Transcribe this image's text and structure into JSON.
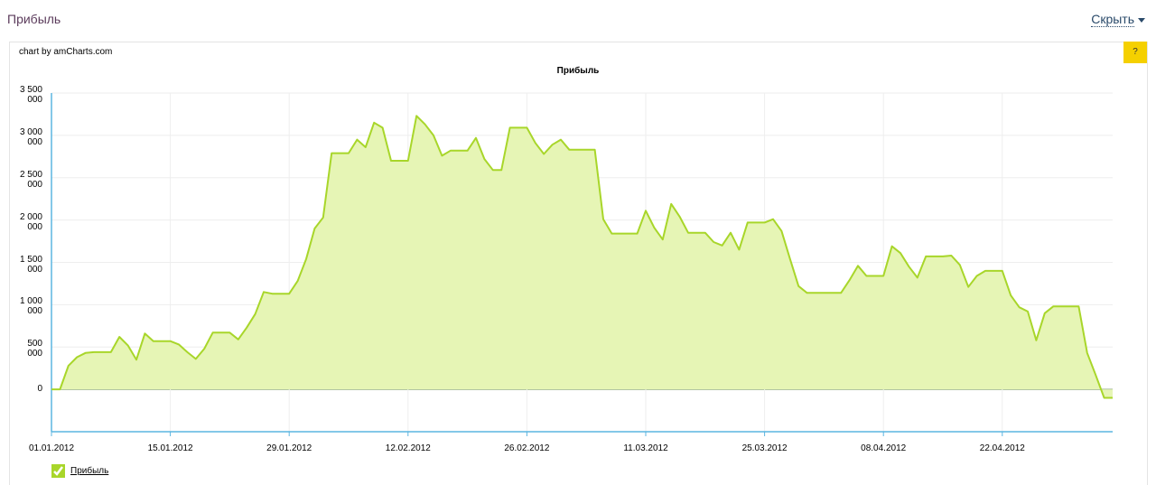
{
  "panel": {
    "title": "Прибыль",
    "toggle": "Скрыть",
    "credit": "chart by amCharts.com",
    "help": "?"
  },
  "chart_data": {
    "type": "area",
    "title": "Прибыль",
    "x": [
      "2012-01-01",
      "2012-01-02",
      "2012-01-03",
      "2012-01-04",
      "2012-01-05",
      "2012-01-06",
      "2012-01-08",
      "2012-01-09",
      "2012-01-10",
      "2012-01-11",
      "2012-01-12",
      "2012-01-13",
      "2012-01-15",
      "2012-01-16",
      "2012-01-17",
      "2012-01-18",
      "2012-01-19",
      "2012-01-20",
      "2012-01-22",
      "2012-01-23",
      "2012-01-24",
      "2012-01-25",
      "2012-01-26",
      "2012-01-27",
      "2012-01-29",
      "2012-01-30",
      "2012-01-31",
      "2012-02-01",
      "2012-02-02",
      "2012-02-03",
      "2012-02-05",
      "2012-02-06",
      "2012-02-07",
      "2012-02-08",
      "2012-02-09",
      "2012-02-10",
      "2012-02-12",
      "2012-02-13",
      "2012-02-14",
      "2012-02-15",
      "2012-02-16",
      "2012-02-17",
      "2012-02-19",
      "2012-02-20",
      "2012-02-21",
      "2012-02-22",
      "2012-02-23",
      "2012-02-24",
      "2012-02-26",
      "2012-02-27",
      "2012-02-28",
      "2012-02-29",
      "2012-03-01",
      "2012-03-02",
      "2012-03-05",
      "2012-03-06",
      "2012-03-07",
      "2012-03-10",
      "2012-03-11",
      "2012-03-12",
      "2012-03-13",
      "2012-03-14",
      "2012-03-15",
      "2012-03-16",
      "2012-03-18",
      "2012-03-19",
      "2012-03-20",
      "2012-03-21",
      "2012-03-22",
      "2012-03-23",
      "2012-03-25",
      "2012-03-26",
      "2012-03-27",
      "2012-03-28",
      "2012-03-29",
      "2012-03-30",
      "2012-04-03",
      "2012-04-04",
      "2012-04-05",
      "2012-04-06",
      "2012-04-08",
      "2012-04-09",
      "2012-04-10",
      "2012-04-11",
      "2012-04-12",
      "2012-04-13",
      "2012-04-15",
      "2012-04-16",
      "2012-04-17",
      "2012-04-18",
      "2012-04-19",
      "2012-04-20",
      "2012-04-22",
      "2012-04-23",
      "2012-04-24",
      "2012-04-25",
      "2012-04-26",
      "2012-04-27",
      "2012-04-28",
      "2012-05-01",
      "2012-05-02",
      "2012-05-03",
      "2012-05-04",
      "2012-05-05"
    ],
    "series": [
      {
        "name": "Прибыль",
        "color": "#a8d62a",
        "fill": "#e6f5b5",
        "values": [
          0,
          0,
          280000,
          380000,
          430000,
          440000,
          440000,
          620000,
          520000,
          350000,
          660000,
          570000,
          570000,
          530000,
          440000,
          360000,
          480000,
          670000,
          670000,
          590000,
          730000,
          890000,
          1150000,
          1130000,
          1130000,
          1280000,
          1540000,
          1900000,
          2030000,
          2790000,
          2790000,
          2950000,
          2860000,
          3150000,
          3090000,
          2700000,
          2700000,
          3230000,
          3130000,
          3000000,
          2760000,
          2820000,
          2820000,
          2970000,
          2720000,
          2590000,
          2590000,
          3090000,
          3090000,
          2910000,
          2780000,
          2890000,
          2950000,
          2830000,
          2830000,
          2010000,
          1840000,
          1840000,
          2110000,
          1910000,
          1770000,
          2190000,
          2040000,
          1850000,
          1850000,
          1740000,
          1700000,
          1850000,
          1650000,
          1970000,
          1970000,
          2010000,
          1870000,
          1540000,
          1220000,
          1140000,
          1140000,
          1290000,
          1460000,
          1340000,
          1340000,
          1690000,
          1610000,
          1450000,
          1320000,
          1570000,
          1570000,
          1580000,
          1470000,
          1210000,
          1340000,
          1400000,
          1400000,
          1110000,
          970000,
          920000,
          580000,
          900000,
          980000,
          980000,
          430000,
          170000,
          -100000,
          -100000
        ]
      }
    ],
    "xlim": [
      "2012-01-01",
      "2012-05-05"
    ],
    "xticks": [
      {
        "value": "2012-01-01",
        "label": "01.01.2012"
      },
      {
        "value": "2012-01-15",
        "label": "15.01.2012"
      },
      {
        "value": "2012-01-29",
        "label": "29.01.2012"
      },
      {
        "value": "2012-02-12",
        "label": "12.02.2012"
      },
      {
        "value": "2012-02-26",
        "label": "26.02.2012"
      },
      {
        "value": "2012-03-11",
        "label": "11.03.2012"
      },
      {
        "value": "2012-03-25",
        "label": "25.03.2012"
      },
      {
        "value": "2012-04-08",
        "label": "08.04.2012"
      },
      {
        "value": "2012-04-22",
        "label": "22.04.2012"
      }
    ],
    "ylim": [
      -500000,
      3500000
    ],
    "yticks": [
      0,
      {
        "value": 500000,
        "label": "500 000"
      },
      {
        "value": 1000000,
        "label": "1 000 000"
      },
      {
        "value": 1500000,
        "label": "1 500 000"
      },
      {
        "value": 2000000,
        "label": "2 000 000"
      },
      {
        "value": 2500000,
        "label": "2 500 000"
      },
      {
        "value": 3000000,
        "label": "3 000 000"
      },
      {
        "value": 3500000,
        "label": "3 500 000"
      }
    ],
    "grid": true
  }
}
